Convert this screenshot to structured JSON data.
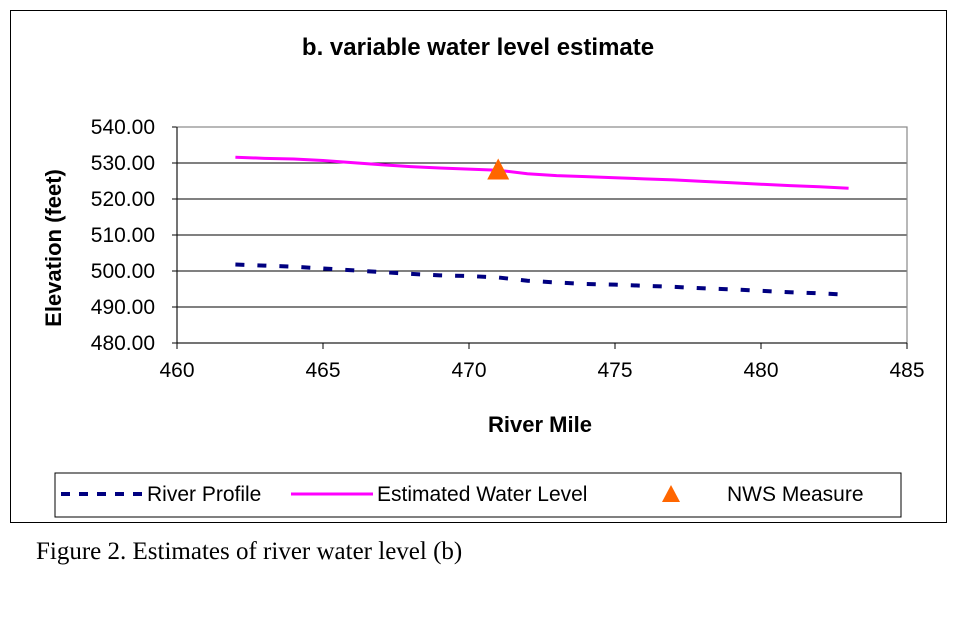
{
  "chart_data": {
    "type": "line",
    "title": "b. variable water level estimate",
    "xlabel": "River Mile",
    "ylabel": "Elevation (feet)",
    "xlim": [
      460,
      485
    ],
    "ylim": [
      480,
      540
    ],
    "x_ticks": [
      460,
      465,
      470,
      475,
      480,
      485
    ],
    "y_ticks": [
      480,
      490,
      500,
      510,
      520,
      530,
      540
    ],
    "y_tick_labels": [
      "480.00",
      "490.00",
      "500.00",
      "510.00",
      "520.00",
      "530.00",
      "540.00"
    ],
    "x_tick_labels": [
      "460",
      "465",
      "470",
      "475",
      "480",
      "485"
    ],
    "grid": "horizontal",
    "legend_position": "bottom",
    "series": [
      {
        "name": "River Profile",
        "style": "dashed",
        "color": "#000080",
        "x": [
          462,
          463,
          464,
          465,
          466,
          467,
          468,
          469,
          470,
          471,
          472,
          473,
          474,
          475,
          476,
          477,
          478,
          479,
          480,
          481,
          482,
          483
        ],
        "y": [
          501.8,
          501.5,
          501.2,
          500.7,
          500.2,
          499.7,
          499.2,
          498.8,
          498.6,
          498.2,
          497.3,
          496.8,
          496.4,
          496.2,
          495.9,
          495.6,
          495.2,
          494.9,
          494.5,
          494.1,
          493.8,
          493.4
        ]
      },
      {
        "name": "Estimated Water Level",
        "style": "solid",
        "color": "#ff00ff",
        "x": [
          462,
          463,
          464,
          465,
          466,
          467,
          468,
          469,
          470,
          471,
          472,
          473,
          474,
          475,
          476,
          477,
          478,
          479,
          480,
          481,
          482,
          483
        ],
        "y": [
          531.6,
          531.3,
          531.1,
          530.7,
          530.1,
          529.5,
          529.0,
          528.6,
          528.3,
          528.0,
          527.0,
          526.5,
          526.2,
          525.9,
          525.6,
          525.3,
          524.9,
          524.5,
          524.1,
          523.7,
          523.4,
          523.0
        ]
      },
      {
        "name": "NWS Measure",
        "style": "marker",
        "marker": "triangle",
        "color": "#ff6600",
        "x": [
          471
        ],
        "y": [
          527.9
        ]
      }
    ]
  },
  "caption": "Figure 2. Estimates of river water level (b)"
}
